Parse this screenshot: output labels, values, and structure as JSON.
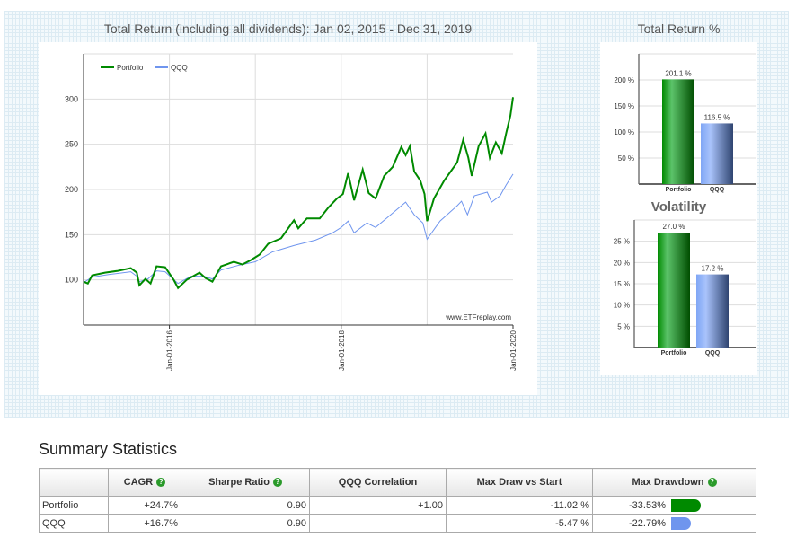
{
  "chart_data": [
    {
      "type": "line",
      "title": "Total Return (including all dividends): Jan 02, 2015 - Dec 31, 2019",
      "ylim": [
        50,
        350
      ],
      "yticks": [
        100,
        150,
        200,
        250,
        300
      ],
      "xlim": [
        2015.0,
        2020.0
      ],
      "xticks": [
        {
          "x": 2016,
          "label": "Jan-01-2016"
        },
        {
          "x": 2018,
          "label": "Jan-01-2018"
        },
        {
          "x": 2020,
          "label": "Jan-01-2020"
        }
      ],
      "xgrid": [
        2016,
        2017,
        2018,
        2019
      ],
      "watermark": "www.ETFreplay.com",
      "series": [
        {
          "name": "Portfolio",
          "color": "#008a00",
          "points": [
            [
              2015.0,
              98
            ],
            [
              2015.05,
              96
            ],
            [
              2015.1,
              105
            ],
            [
              2015.25,
              108
            ],
            [
              2015.4,
              110
            ],
            [
              2015.55,
              113
            ],
            [
              2015.62,
              108
            ],
            [
              2015.65,
              94
            ],
            [
              2015.72,
              101
            ],
            [
              2015.78,
              96
            ],
            [
              2015.85,
              115
            ],
            [
              2015.95,
              114
            ],
            [
              2016.05,
              100
            ],
            [
              2016.1,
              91
            ],
            [
              2016.2,
              100
            ],
            [
              2016.35,
              108
            ],
            [
              2016.42,
              102
            ],
            [
              2016.5,
              98
            ],
            [
              2016.6,
              115
            ],
            [
              2016.75,
              120
            ],
            [
              2016.85,
              117
            ],
            [
              2016.95,
              122
            ],
            [
              2017.05,
              128
            ],
            [
              2017.15,
              140
            ],
            [
              2017.3,
              146
            ],
            [
              2017.45,
              166
            ],
            [
              2017.5,
              157
            ],
            [
              2017.6,
              168
            ],
            [
              2017.75,
              168
            ],
            [
              2017.85,
              180
            ],
            [
              2017.95,
              190
            ],
            [
              2018.02,
              195
            ],
            [
              2018.08,
              218
            ],
            [
              2018.15,
              188
            ],
            [
              2018.25,
              222
            ],
            [
              2018.32,
              196
            ],
            [
              2018.4,
              190
            ],
            [
              2018.5,
              215
            ],
            [
              2018.6,
              225
            ],
            [
              2018.7,
              247
            ],
            [
              2018.75,
              238
            ],
            [
              2018.8,
              248
            ],
            [
              2018.85,
              220
            ],
            [
              2018.92,
              210
            ],
            [
              2018.97,
              195
            ],
            [
              2019.0,
              165
            ],
            [
              2019.08,
              190
            ],
            [
              2019.2,
              210
            ],
            [
              2019.35,
              230
            ],
            [
              2019.42,
              255
            ],
            [
              2019.48,
              235
            ],
            [
              2019.52,
              215
            ],
            [
              2019.6,
              248
            ],
            [
              2019.68,
              262
            ],
            [
              2019.73,
              235
            ],
            [
              2019.8,
              252
            ],
            [
              2019.87,
              240
            ],
            [
              2019.92,
              262
            ],
            [
              2019.97,
              282
            ],
            [
              2020.0,
              302
            ]
          ]
        },
        {
          "name": "QQQ",
          "color": "#6f95ee",
          "points": [
            [
              2015.0,
              97
            ],
            [
              2015.1,
              103
            ],
            [
              2015.3,
              106
            ],
            [
              2015.55,
              109
            ],
            [
              2015.62,
              104
            ],
            [
              2015.65,
              98
            ],
            [
              2015.75,
              101
            ],
            [
              2015.85,
              110
            ],
            [
              2015.95,
              109
            ],
            [
              2016.1,
              96
            ],
            [
              2016.25,
              104
            ],
            [
              2016.4,
              104
            ],
            [
              2016.5,
              101
            ],
            [
              2016.6,
              111
            ],
            [
              2016.8,
              116
            ],
            [
              2017.0,
              120
            ],
            [
              2017.2,
              131
            ],
            [
              2017.45,
              138
            ],
            [
              2017.7,
              144
            ],
            [
              2017.9,
              152
            ],
            [
              2018.0,
              158
            ],
            [
              2018.08,
              165
            ],
            [
              2018.15,
              152
            ],
            [
              2018.3,
              163
            ],
            [
              2018.4,
              158
            ],
            [
              2018.55,
              170
            ],
            [
              2018.75,
              186
            ],
            [
              2018.85,
              172
            ],
            [
              2018.95,
              163
            ],
            [
              2019.0,
              145
            ],
            [
              2019.15,
              165
            ],
            [
              2019.35,
              182
            ],
            [
              2019.4,
              187
            ],
            [
              2019.47,
              172
            ],
            [
              2019.55,
              193
            ],
            [
              2019.7,
              197
            ],
            [
              2019.75,
              186
            ],
            [
              2019.85,
              193
            ],
            [
              2019.92,
              205
            ],
            [
              2020.0,
              217
            ]
          ]
        }
      ]
    },
    {
      "type": "bar",
      "title": "Total Return %",
      "categories": [
        "Portfolio",
        "QQQ"
      ],
      "values": [
        201.1,
        116.5
      ],
      "labels": [
        "201.1 %",
        "116.5 %"
      ],
      "ylim": [
        0,
        250
      ],
      "yticks": [
        50,
        100,
        150,
        200
      ],
      "unit": " %"
    },
    {
      "type": "bar",
      "title": "Volatility",
      "categories": [
        "Portfolio",
        "QQQ"
      ],
      "values": [
        27.0,
        17.2
      ],
      "labels": [
        "27.0 %",
        "17.2 %"
      ],
      "ylim": [
        0,
        30
      ],
      "yticks": [
        5,
        10,
        15,
        20,
        25
      ],
      "unit": " %"
    }
  ],
  "summary": {
    "title": "Summary Statistics",
    "headers": [
      "",
      "CAGR",
      "Sharpe Ratio",
      "QQQ Correlation",
      "Max Draw vs Start",
      "Max Drawdown"
    ],
    "help_icon": "?",
    "rows": [
      {
        "name": "Portfolio",
        "cagr": "+24.7%",
        "sharpe": "0.90",
        "corr": "+1.00",
        "mdvs": "-11.02 %",
        "mdd": "-33.53%",
        "mdd_value": 33.53,
        "color": "#008a00"
      },
      {
        "name": "QQQ",
        "cagr": "+16.7%",
        "sharpe": "0.90",
        "corr": "",
        "mdvs": "-5.47 %",
        "mdd": "-22.79%",
        "mdd_value": 22.79,
        "color": "#6f95ee"
      }
    ]
  }
}
